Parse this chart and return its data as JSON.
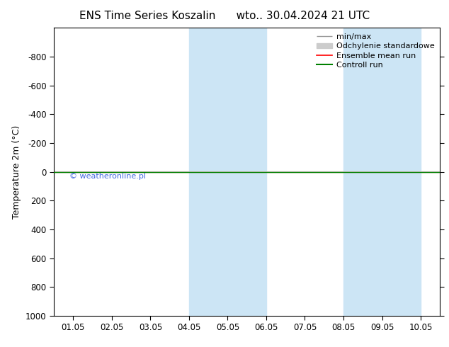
{
  "title_left": "ENS Time Series Koszalin",
  "title_right": "wto.. 30.04.2024 21 UTC",
  "ylabel": "Temperature 2m (°C)",
  "ylim_top": -1000,
  "ylim_bottom": 1000,
  "yticks": [
    -800,
    -600,
    -400,
    -200,
    0,
    200,
    400,
    600,
    800,
    1000
  ],
  "xtick_labels": [
    "01.05",
    "02.05",
    "03.05",
    "04.05",
    "05.05",
    "06.05",
    "07.05",
    "08.05",
    "09.05",
    "10.05"
  ],
  "xtick_positions": [
    0,
    1,
    2,
    3,
    4,
    5,
    6,
    7,
    8,
    9
  ],
  "xlim": [
    -0.5,
    9.5
  ],
  "shade_bands": [
    {
      "x_start": 3.0,
      "x_end": 5.0,
      "color": "#cce5f5"
    },
    {
      "x_start": 7.0,
      "x_end": 9.0,
      "color": "#cce5f5"
    }
  ],
  "control_run_color": "#008000",
  "ensemble_mean_color": "#ff0000",
  "minmax_color": "#999999",
  "std_dev_color": "#cccccc",
  "watermark_text": "© weatheronline.pl",
  "watermark_color": "#4169e1",
  "legend_entries": [
    "min/max",
    "Odchylenie standardowe",
    "Ensemble mean run",
    "Controll run"
  ],
  "legend_colors": [
    "#999999",
    "#cccccc",
    "#ff0000",
    "#008000"
  ],
  "bg_color": "#ffffff",
  "title_fontsize": 11,
  "axis_fontsize": 9,
  "tick_fontsize": 8.5,
  "legend_fontsize": 8
}
